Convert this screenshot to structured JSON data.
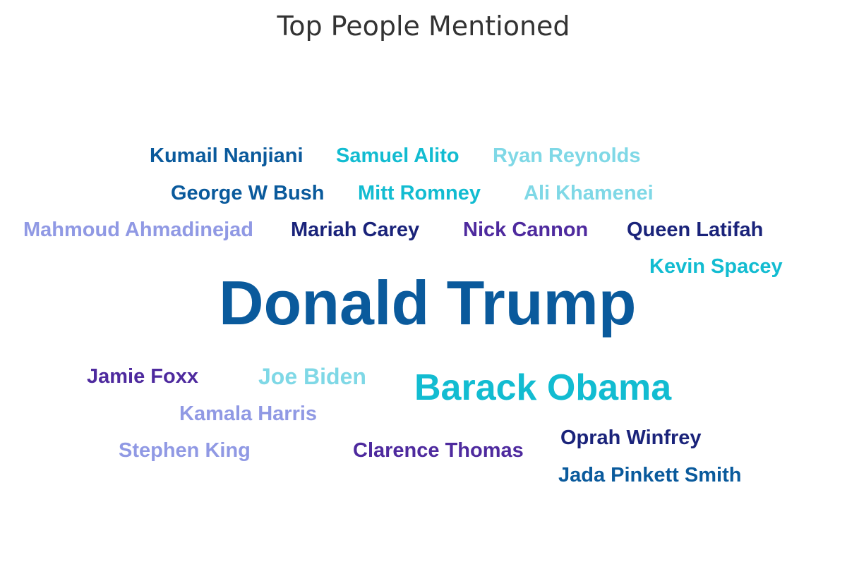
{
  "chart_data": {
    "type": "wordcloud",
    "title": "Top People Mentioned",
    "words": [
      {
        "text": "Donald Trump",
        "weight": 100,
        "color": "#0a5a9c"
      },
      {
        "text": "Barack Obama",
        "weight": 60,
        "color": "#12bcd1"
      },
      {
        "text": "Kumail Nanjiani",
        "weight": 30,
        "color": "#0a5a9c"
      },
      {
        "text": "Samuel Alito",
        "weight": 30,
        "color": "#12bcd1"
      },
      {
        "text": "Ryan Reynolds",
        "weight": 30,
        "color": "#7fd8e6"
      },
      {
        "text": "George W Bush",
        "weight": 30,
        "color": "#0a5a9c"
      },
      {
        "text": "Mitt Romney",
        "weight": 30,
        "color": "#12bcd1"
      },
      {
        "text": "Ali Khamenei",
        "weight": 30,
        "color": "#7fd8e6"
      },
      {
        "text": "Mahmoud Ahmadinejad",
        "weight": 30,
        "color": "#9099e4"
      },
      {
        "text": "Mariah Carey",
        "weight": 30,
        "color": "#1a237a"
      },
      {
        "text": "Nick Cannon",
        "weight": 30,
        "color": "#4e2a9e"
      },
      {
        "text": "Queen Latifah",
        "weight": 30,
        "color": "#1a237a"
      },
      {
        "text": "Kevin Spacey",
        "weight": 30,
        "color": "#12bcd1"
      },
      {
        "text": "Jamie Foxx",
        "weight": 30,
        "color": "#4e2a9e"
      },
      {
        "text": "Joe Biden",
        "weight": 34,
        "color": "#7fd8e6"
      },
      {
        "text": "Kamala Harris",
        "weight": 30,
        "color": "#9099e4"
      },
      {
        "text": "Stephen King",
        "weight": 30,
        "color": "#9099e4"
      },
      {
        "text": "Clarence Thomas",
        "weight": 30,
        "color": "#4e2a9e"
      },
      {
        "text": "Oprah Winfrey",
        "weight": 30,
        "color": "#1a237a"
      },
      {
        "text": "Jada Pinkett Smith",
        "weight": 30,
        "color": "#0a5a9c"
      }
    ]
  }
}
